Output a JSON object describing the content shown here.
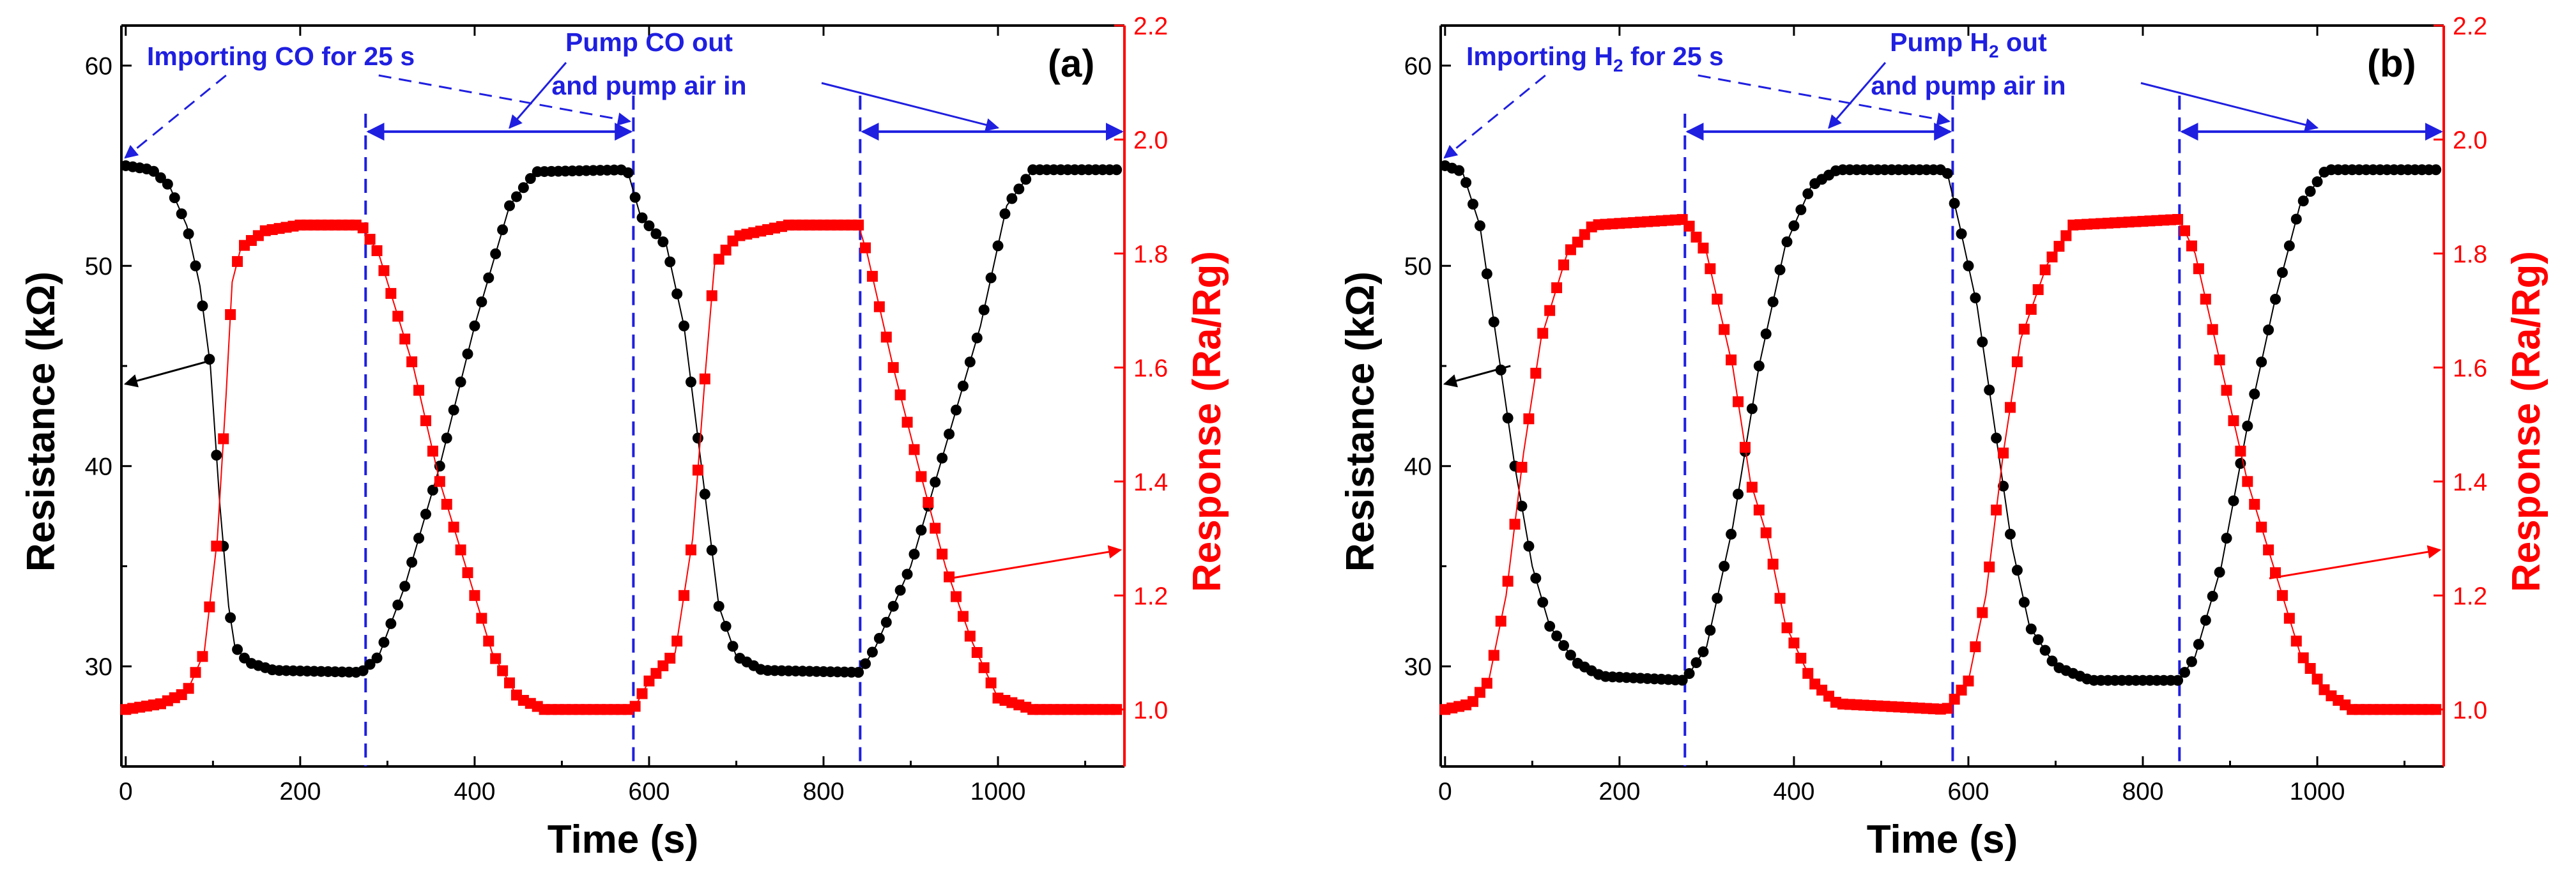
{
  "colors": {
    "resistance": "#000000",
    "response": "#ff0000",
    "annotation": "#1f1fe0",
    "axis_left": "#000000",
    "axis_right": "#ff0000"
  },
  "chart_data": [
    {
      "type": "scatter",
      "panel_label": "(a)",
      "xlabel": "Time (s)",
      "ylabel_left": "Resistance (kΩ)",
      "ylabel_right": "Response (Ra/Rg)",
      "xlim": [
        -5,
        1145
      ],
      "ylim_left": [
        25,
        62
      ],
      "ylim_right": [
        0.9,
        2.2
      ],
      "xticks": [
        0,
        200,
        400,
        600,
        800,
        1000
      ],
      "yticks_left": [
        30,
        40,
        50,
        60
      ],
      "yticks_right": [
        1.0,
        1.2,
        1.4,
        1.6,
        1.8,
        2.0,
        2.2
      ],
      "annotations": {
        "import_text": "Importing CO for 25 s",
        "pump_line1": "Pump CO out",
        "pump_line2": "and pump air in"
      },
      "events_x": [
        275,
        582,
        842
      ],
      "series": [
        {
          "name": "Resistance",
          "axis": "left",
          "marker": "circle",
          "points": [
            [
              0,
              55
            ],
            [
              30,
              54.8
            ],
            [
              50,
              54
            ],
            [
              70,
              52
            ],
            [
              85,
              49
            ],
            [
              97,
              45
            ],
            [
              108,
              38
            ],
            [
              118,
              33
            ],
            [
              125,
              31
            ],
            [
              140,
              30.2
            ],
            [
              170,
              29.8
            ],
            [
              270,
              29.7
            ],
            [
              290,
              30.5
            ],
            [
              320,
              34
            ],
            [
              360,
              40
            ],
            [
              400,
              47
            ],
            [
              440,
              53
            ],
            [
              470,
              54.7
            ],
            [
              575,
              54.8
            ],
            [
              590,
              52.5
            ],
            [
              620,
              51
            ],
            [
              640,
              47
            ],
            [
              660,
              40
            ],
            [
              680,
              33
            ],
            [
              700,
              30.5
            ],
            [
              730,
              29.8
            ],
            [
              842,
              29.7
            ],
            [
              860,
              31
            ],
            [
              900,
              35
            ],
            [
              940,
              41
            ],
            [
              980,
              47
            ],
            [
              1010,
              53
            ],
            [
              1040,
              54.8
            ],
            [
              1140,
              54.8
            ]
          ]
        },
        {
          "name": "Response",
          "axis": "right",
          "marker": "square",
          "points": [
            [
              0,
              1.0
            ],
            [
              40,
              1.01
            ],
            [
              70,
              1.03
            ],
            [
              90,
              1.1
            ],
            [
              105,
              1.3
            ],
            [
              115,
              1.55
            ],
            [
              122,
              1.75
            ],
            [
              132,
              1.81
            ],
            [
              160,
              1.84
            ],
            [
              200,
              1.85
            ],
            [
              270,
              1.85
            ],
            [
              290,
              1.8
            ],
            [
              330,
              1.6
            ],
            [
              360,
              1.4
            ],
            [
              390,
              1.25
            ],
            [
              420,
              1.1
            ],
            [
              450,
              1.02
            ],
            [
              480,
              1.0
            ],
            [
              582,
              1.0
            ],
            [
              600,
              1.05
            ],
            [
              630,
              1.1
            ],
            [
              650,
              1.3
            ],
            [
              665,
              1.6
            ],
            [
              675,
              1.78
            ],
            [
              700,
              1.83
            ],
            [
              760,
              1.85
            ],
            [
              840,
              1.85
            ],
            [
              850,
              1.8
            ],
            [
              880,
              1.6
            ],
            [
              910,
              1.42
            ],
            [
              940,
              1.25
            ],
            [
              970,
              1.12
            ],
            [
              1000,
              1.02
            ],
            [
              1040,
              1.0
            ],
            [
              1140,
              1.0
            ]
          ]
        }
      ]
    },
    {
      "type": "scatter",
      "panel_label": "(b)",
      "xlabel": "Time (s)",
      "ylabel_left": "Resistance (kΩ)",
      "ylabel_right": "Response (Ra/Rg)",
      "xlim": [
        -5,
        1145
      ],
      "ylim_left": [
        25,
        62
      ],
      "ylim_right": [
        0.9,
        2.2
      ],
      "xticks": [
        0,
        200,
        400,
        600,
        800,
        1000
      ],
      "yticks_left": [
        30,
        40,
        50,
        60
      ],
      "yticks_right": [
        1.0,
        1.2,
        1.4,
        1.6,
        1.8,
        2.0,
        2.2
      ],
      "annotations": {
        "import_text": "Importing H",
        "import_sub": "2",
        "import_text_tail": " for 25 s",
        "pump_line1": "Pump H",
        "pump_sub": "2",
        "pump_line1_tail": " out",
        "pump_line2": "and pump air in"
      },
      "events_x": [
        275,
        582,
        842
      ],
      "series": [
        {
          "name": "Resistance",
          "axis": "left",
          "marker": "circle",
          "points": [
            [
              0,
              55
            ],
            [
              20,
              54.7
            ],
            [
              40,
              52
            ],
            [
              60,
              46
            ],
            [
              80,
              40
            ],
            [
              100,
              35
            ],
            [
              120,
              32
            ],
            [
              150,
              30.2
            ],
            [
              180,
              29.5
            ],
            [
              275,
              29.3
            ],
            [
              300,
              31
            ],
            [
              330,
              37
            ],
            [
              360,
              45
            ],
            [
              390,
              51
            ],
            [
              420,
              54
            ],
            [
              450,
              54.8
            ],
            [
              575,
              54.8
            ],
            [
              590,
              52
            ],
            [
              610,
              48
            ],
            [
              630,
              42
            ],
            [
              650,
              36
            ],
            [
              670,
              32
            ],
            [
              700,
              30
            ],
            [
              740,
              29.3
            ],
            [
              842,
              29.3
            ],
            [
              860,
              30.5
            ],
            [
              890,
              35
            ],
            [
              920,
              42
            ],
            [
              950,
              48
            ],
            [
              980,
              53
            ],
            [
              1010,
              54.8
            ],
            [
              1140,
              54.8
            ]
          ]
        },
        {
          "name": "Response",
          "axis": "right",
          "marker": "square",
          "points": [
            [
              0,
              1.0
            ],
            [
              30,
              1.01
            ],
            [
              50,
              1.05
            ],
            [
              70,
              1.2
            ],
            [
              90,
              1.45
            ],
            [
              110,
              1.65
            ],
            [
              140,
              1.8
            ],
            [
              170,
              1.85
            ],
            [
              275,
              1.86
            ],
            [
              300,
              1.8
            ],
            [
              330,
              1.6
            ],
            [
              350,
              1.4
            ],
            [
              370,
              1.3
            ],
            [
              390,
              1.15
            ],
            [
              420,
              1.05
            ],
            [
              450,
              1.01
            ],
            [
              575,
              1.0
            ],
            [
              600,
              1.05
            ],
            [
              620,
              1.2
            ],
            [
              640,
              1.45
            ],
            [
              660,
              1.65
            ],
            [
              690,
              1.78
            ],
            [
              720,
              1.85
            ],
            [
              842,
              1.86
            ],
            [
              860,
              1.8
            ],
            [
              890,
              1.6
            ],
            [
              920,
              1.4
            ],
            [
              950,
              1.25
            ],
            [
              980,
              1.1
            ],
            [
              1010,
              1.03
            ],
            [
              1040,
              1.0
            ],
            [
              1140,
              1.0
            ]
          ]
        }
      ]
    }
  ]
}
